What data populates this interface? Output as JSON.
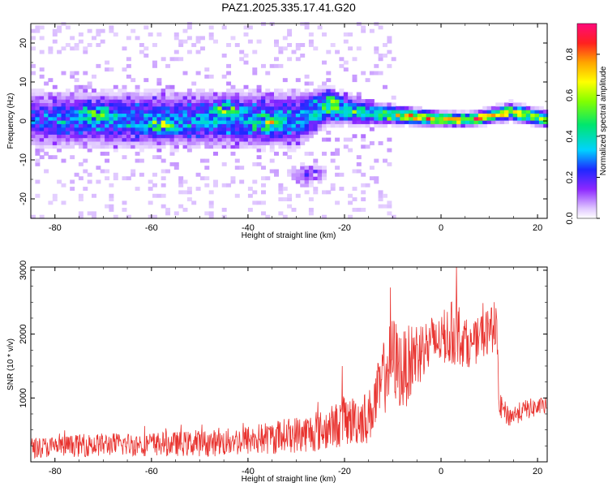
{
  "title": "PAZ1.2025.335.17.41.G20",
  "chart_data": [
    {
      "type": "heatmap",
      "name": "spectrogram",
      "xlabel": "Height of straight line (km)",
      "ylabel": "Frequency (Hz)",
      "xlim": [
        -85,
        22
      ],
      "ylim": [
        -25,
        25
      ],
      "xticks": [
        -80,
        -60,
        -40,
        -20,
        0,
        20
      ],
      "yticks": [
        -20,
        -10,
        0,
        10,
        20
      ],
      "colorbar": {
        "label": "Normalized spectral amplitude",
        "range": [
          0,
          0.95
        ],
        "ticks": [
          0.0,
          0.2,
          0.4,
          0.6,
          0.8
        ]
      },
      "ridge": [
        {
          "x": -84,
          "freq": 0,
          "width": 5,
          "amp": 0.28
        },
        {
          "x": -70,
          "freq": 0,
          "width": 5,
          "amp": 0.33
        },
        {
          "x": -55,
          "freq": 0,
          "width": 5,
          "amp": 0.33
        },
        {
          "x": -40,
          "freq": 0,
          "width": 5,
          "amp": 0.35
        },
        {
          "x": -30,
          "freq": 0,
          "width": 5,
          "amp": 0.33
        },
        {
          "x": -24,
          "freq": 3,
          "width": 3,
          "amp": 0.42
        },
        {
          "x": -15,
          "freq": 1.5,
          "width": 2,
          "amp": 0.5
        },
        {
          "x": -8,
          "freq": 1,
          "width": 1.5,
          "amp": 0.72
        },
        {
          "x": 0,
          "freq": 0,
          "width": 1.2,
          "amp": 0.95
        },
        {
          "x": 6,
          "freq": 0,
          "width": 1.2,
          "amp": 0.9
        },
        {
          "x": 14,
          "freq": 2,
          "width": 1.5,
          "amp": 0.7
        },
        {
          "x": 22,
          "freq": 0,
          "width": 1.5,
          "amp": 0.65
        }
      ],
      "noise_patches": [
        {
          "x": -72,
          "freq": 2,
          "amp": 0.45
        },
        {
          "x": -58,
          "freq": -2,
          "amp": 0.4
        },
        {
          "x": -45,
          "freq": 3,
          "amp": 0.45
        },
        {
          "x": -36,
          "freq": -1,
          "amp": 0.5
        },
        {
          "x": -28,
          "freq": -14,
          "amp": 0.3
        },
        {
          "x": -24,
          "freq": 5,
          "amp": 0.45
        }
      ]
    },
    {
      "type": "line",
      "name": "snr",
      "xlabel": "Height of straight line (km)",
      "ylabel": "SNR (10 * v/v)",
      "xlim": [
        -85,
        22
      ],
      "ylim": [
        0,
        3050
      ],
      "xticks": [
        -80,
        -60,
        -40,
        -20,
        0,
        20
      ],
      "yticks": [
        1000,
        2000,
        3000
      ],
      "color": "#e8322e",
      "trend": [
        {
          "x": -85,
          "mean": 220,
          "spread": 200
        },
        {
          "x": -70,
          "mean": 270,
          "spread": 230
        },
        {
          "x": -55,
          "mean": 280,
          "spread": 240
        },
        {
          "x": -45,
          "mean": 300,
          "spread": 270
        },
        {
          "x": -35,
          "mean": 380,
          "spread": 330
        },
        {
          "x": -25,
          "mean": 480,
          "spread": 400
        },
        {
          "x": -20,
          "mean": 620,
          "spread": 480
        },
        {
          "x": -15,
          "mean": 700,
          "spread": 520
        },
        {
          "x": -12,
          "mean": 1250,
          "spread": 700
        },
        {
          "x": -10,
          "mean": 1650,
          "spread": 850
        },
        {
          "x": -8,
          "mean": 1400,
          "spread": 800
        },
        {
          "x": -5,
          "mean": 1700,
          "spread": 700
        },
        {
          "x": 0,
          "mean": 1900,
          "spread": 450
        },
        {
          "x": 3,
          "mean": 2050,
          "spread": 700
        },
        {
          "x": 6,
          "mean": 1800,
          "spread": 400
        },
        {
          "x": 10,
          "mean": 2050,
          "spread": 500
        },
        {
          "x": 11.5,
          "mean": 2100,
          "spread": 400
        },
        {
          "x": 12,
          "mean": 900,
          "spread": 250
        },
        {
          "x": 14,
          "mean": 700,
          "spread": 200
        },
        {
          "x": 18,
          "mean": 830,
          "spread": 200
        },
        {
          "x": 22,
          "mean": 870,
          "spread": 180
        }
      ],
      "peaks": [
        {
          "x": -10.5,
          "y": 2730
        },
        {
          "x": 3.2,
          "y": 3050
        },
        {
          "x": -20.5,
          "y": 1500
        },
        {
          "x": 11,
          "y": 2500
        }
      ]
    }
  ]
}
